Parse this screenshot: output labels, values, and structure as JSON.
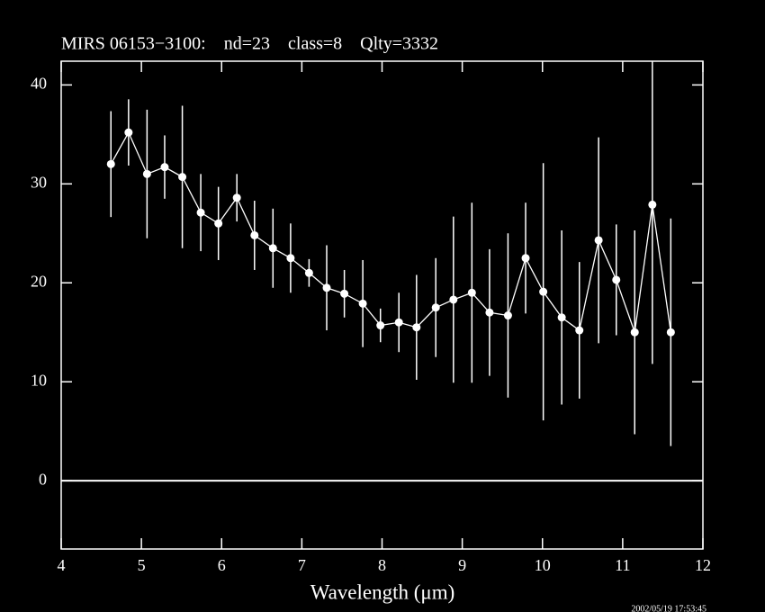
{
  "chart_data": {
    "type": "errorbar",
    "title": "MIRS 06153−3100:    nd=23    class=8    Qlty=3332",
    "x_label": "Wavelength (μm)",
    "timestamp": "2002/05/19 17:53:45",
    "xlim": [
      4,
      12
    ],
    "xticks": [
      4,
      5,
      6,
      7,
      8,
      9,
      10,
      11,
      12
    ],
    "ylim": [
      -6.9,
      42.4
    ],
    "yticks": [
      0,
      10,
      20,
      30,
      40
    ],
    "zero_line": true,
    "series": [
      {
        "color": "#ffffff",
        "x": [
          4.62,
          4.84,
          5.07,
          5.29,
          5.51,
          5.74,
          5.96,
          6.19,
          6.41,
          6.64,
          6.86,
          7.09,
          7.31,
          7.53,
          7.76,
          7.98,
          8.21,
          8.43,
          8.67,
          8.89,
          9.12,
          9.34,
          9.57,
          9.79,
          10.01,
          10.24,
          10.46,
          10.7,
          10.92,
          11.15,
          11.37,
          11.6
        ],
        "values": [
          32.0,
          35.2,
          31.0,
          31.7,
          30.7,
          27.1,
          26.0,
          28.6,
          24.8,
          23.5,
          22.5,
          21.0,
          19.5,
          18.9,
          17.9,
          15.7,
          16.0,
          15.5,
          17.5,
          18.3,
          19.0,
          17.0,
          16.7,
          22.5,
          19.1,
          16.5,
          15.2,
          24.3,
          20.3,
          15.0,
          27.9,
          15.0
        ],
        "errors": [
          5.35,
          3.35,
          6.5,
          3.2,
          7.2,
          3.9,
          3.7,
          2.4,
          3.5,
          4.0,
          3.5,
          1.4,
          4.3,
          2.4,
          4.4,
          1.7,
          3.0,
          5.3,
          5.0,
          8.4,
          9.1,
          6.4,
          8.3,
          5.6,
          13.0,
          8.8,
          6.9,
          10.4,
          5.6,
          10.3,
          16.1,
          11.5
        ]
      }
    ]
  }
}
